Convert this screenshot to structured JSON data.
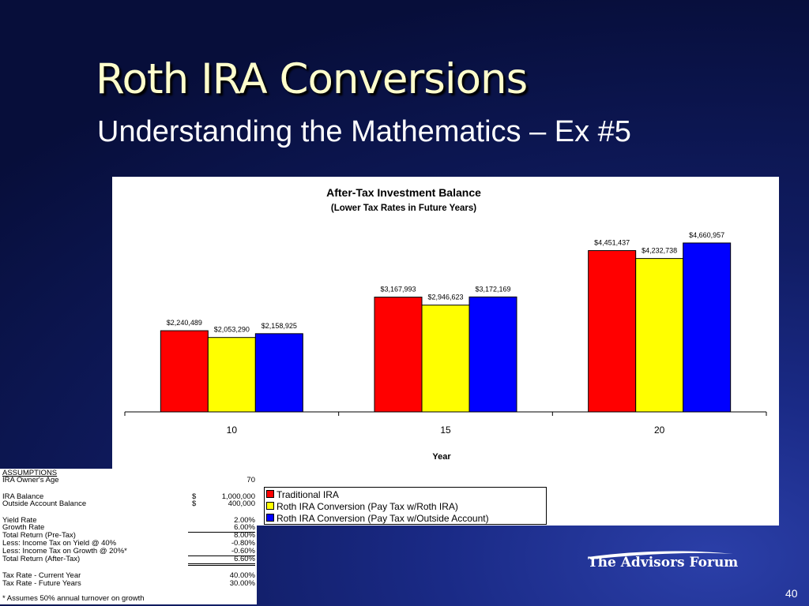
{
  "slide": {
    "title": "Roth IRA Conversions",
    "subtitle": "Understanding the Mathematics – Ex #5",
    "page_number": "40",
    "logo_text": "The Advisors Forum",
    "background_color": "#101c62",
    "title_color": "#ffffcc"
  },
  "chart_data": {
    "type": "bar",
    "title": "After-Tax Investment Balance",
    "subtitle": "(Lower Tax Rates in Future Years)",
    "xlabel": "Year",
    "ylabel": "",
    "categories": [
      "10",
      "15",
      "20"
    ],
    "ylim": [
      0,
      5400000
    ],
    "grid": false,
    "legend_position": "bottom",
    "series": [
      {
        "name": "Traditional IRA",
        "color": "#ff0000",
        "values": [
          2240489,
          3167993,
          4451437
        ],
        "labels": [
          "$2,240,489",
          "$3,167,993",
          "$4,451,437"
        ]
      },
      {
        "name": "Roth IRA Conversion (Pay Tax w/Roth IRA)",
        "color": "#ffff00",
        "values": [
          2053290,
          2946623,
          4232738
        ],
        "labels": [
          "$2,053,290",
          "$2,946,623",
          "$4,232,738"
        ]
      },
      {
        "name": "Roth IRA Conversion (Pay Tax w/Outside Account)",
        "color": "#0000ff",
        "values": [
          2158925,
          3172169,
          4660957
        ],
        "labels": [
          "$2,158,925",
          "$3,172,169",
          "$4,660,957"
        ]
      }
    ]
  },
  "assumptions": {
    "header": "ASSUMPTIONS",
    "rows": [
      {
        "label": "IRA Owner's Age",
        "currency": "",
        "value": "70"
      },
      {
        "label": "IRA Balance",
        "currency": "$",
        "value": "1,000,000"
      },
      {
        "label": "Outside Account Balance",
        "currency": "$",
        "value": "400,000"
      },
      {
        "label": "Yield Rate",
        "currency": "",
        "value": "2.00%"
      },
      {
        "label": "Growth Rate",
        "currency": "",
        "value": "6.00%"
      },
      {
        "label": "Total Return (Pre-Tax)",
        "currency": "",
        "value": "8.00%"
      },
      {
        "label": "Less: Income Tax on Yield @ 40%",
        "currency": "",
        "value": "-0.80%"
      },
      {
        "label": "Less: Income Tax on Growth @ 20%*",
        "currency": "",
        "value": "-0.60%"
      },
      {
        "label": "Total Return (After-Tax)",
        "currency": "",
        "value": "6.60%"
      },
      {
        "label": "Tax Rate - Current Year",
        "currency": "",
        "value": "40.00%"
      },
      {
        "label": "Tax Rate - Future Years",
        "currency": "",
        "value": "30.00%"
      }
    ],
    "footnote": "* Assumes 50% annual turnover on growth"
  }
}
